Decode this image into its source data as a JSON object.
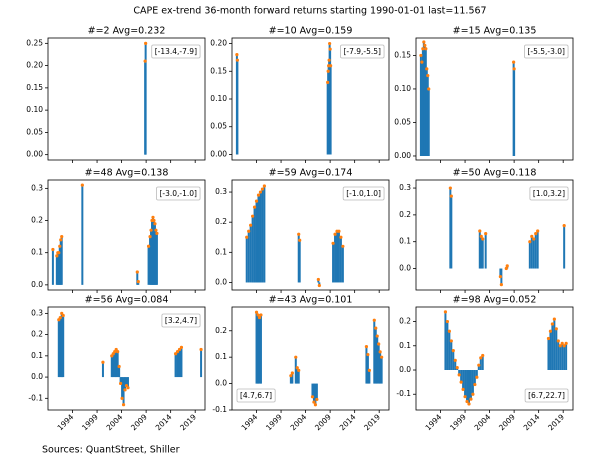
{
  "title": "CAPE ex-trend 36-month forward returns starting 1990-01-01  last=11.567",
  "source": "Sources: QuantStreet, Shiller",
  "chart_data": [
    {
      "type": "stem",
      "title": "#=2 Avg=0.232",
      "annotation": "[-13.4,-7.9]",
      "annotation_corner": "top right",
      "color": "#1f77b4",
      "marker_color": "#ff7f0e",
      "x": [
        2008.8,
        2008.9
      ],
      "values": [
        0.21,
        0.25
      ],
      "xlim": [
        1989,
        2021
      ],
      "xticks": [
        1994,
        1999,
        2004,
        2009,
        2014,
        2019
      ],
      "show_xticklabels": false,
      "ylim": [
        -0.012,
        0.262
      ],
      "yticks": [
        {
          "value": 0,
          "label": "0.00"
        },
        0.05,
        {
          "value": 0.1,
          "label": "0.10"
        },
        0.15,
        {
          "value": 0.2,
          "label": "0.20"
        },
        0.25
      ]
    },
    {
      "type": "stem",
      "title": "#=10 Avg=0.159",
      "annotation": "[-7.9,-5.5]",
      "annotation_corner": "top right",
      "color": "#1f77b4",
      "marker_color": "#ff7f0e",
      "x": [
        1990.0,
        1990.1,
        2008.5,
        2008.6,
        2008.7,
        2008.8,
        2008.9,
        2009.0,
        2009.1
      ],
      "values": [
        0.18,
        0.17,
        0.13,
        0.15,
        0.16,
        0.17,
        0.2,
        0.19,
        0.16
      ],
      "xlim": [
        1989,
        2021
      ],
      "xticks": [
        1994,
        1999,
        2004,
        2009,
        2014,
        2019
      ],
      "show_xticklabels": false,
      "ylim": [
        -0.01,
        0.21
      ],
      "yticks": [
        {
          "value": 0,
          "label": "0.00"
        },
        0.05,
        {
          "value": 0.1,
          "label": "0.10"
        },
        0.15,
        {
          "value": 0.2,
          "label": "0.20"
        }
      ]
    },
    {
      "type": "stem",
      "title": "#=15 Avg=0.135",
      "annotation": "[-5.5,-3.0]",
      "annotation_corner": "top right",
      "color": "#1f77b4",
      "marker_color": "#ff7f0e",
      "x": [
        1990.0,
        1990.2,
        1990.4,
        1990.6,
        1990.8,
        1991.0,
        1991.2,
        1991.4,
        1991.6,
        2008.9,
        2009.0
      ],
      "values": [
        0.15,
        0.14,
        0.16,
        0.17,
        0.165,
        0.16,
        0.13,
        0.12,
        0.1,
        0.14,
        0.13
      ],
      "xlim": [
        1989,
        2021
      ],
      "xticks": [
        1994,
        1999,
        2004,
        2009,
        2014,
        2019
      ],
      "show_xticklabels": false,
      "ylim": [
        -0.006,
        0.176
      ],
      "yticks": [
        {
          "value": 0,
          "label": "0.00"
        },
        0.05,
        {
          "value": 0.1,
          "label": "0.10"
        },
        0.15
      ]
    },
    {
      "type": "stem",
      "title": "#=48 Avg=0.138",
      "annotation": "[-3.0,-1.0]",
      "annotation_corner": "top right",
      "color": "#1f77b4",
      "marker_color": "#ff7f0e",
      "x": [
        1990.0,
        1990.8,
        1991.0,
        1991.2,
        1991.4,
        1991.6,
        1991.8,
        1996.0,
        2007.2,
        2007.4,
        2009.5,
        2009.8,
        2010.0,
        2010.2,
        2010.4,
        2010.6,
        2010.8,
        2011.0,
        2011.2
      ],
      "values": [
        0.11,
        0.09,
        0.1,
        0.1,
        0.12,
        0.14,
        0.15,
        0.31,
        0.04,
        0.01,
        0.12,
        0.15,
        0.17,
        0.2,
        0.21,
        0.2,
        0.19,
        0.17,
        0.16
      ],
      "xlim": [
        1989,
        2021
      ],
      "xticks": [
        1994,
        1999,
        2004,
        2009,
        2014,
        2019
      ],
      "show_xticklabels": false,
      "ylim": [
        -0.016,
        0.326
      ],
      "yticks": [
        {
          "value": 0,
          "label": "0.0"
        },
        0.1,
        0.2,
        0.3
      ]
    },
    {
      "type": "stem",
      "title": "#=59 Avg=0.174",
      "annotation": "[-1.0,1.0]",
      "annotation_corner": "top right",
      "color": "#1f77b4",
      "marker_color": "#ff7f0e",
      "x": [
        1992.0,
        1992.4,
        1992.8,
        1993.2,
        1993.6,
        1994.0,
        1994.4,
        1994.8,
        1995.2,
        1995.6,
        2002.6,
        2002.8,
        2006.6,
        2006.8,
        2009.6,
        2010.0,
        2010.4,
        2010.8,
        2011.2,
        2011.6
      ],
      "values": [
        0.15,
        0.17,
        0.19,
        0.22,
        0.25,
        0.27,
        0.29,
        0.3,
        0.31,
        0.32,
        0.16,
        0.14,
        0.01,
        -0.01,
        0.13,
        0.16,
        0.17,
        0.17,
        0.15,
        0.12
      ],
      "xlim": [
        1989,
        2021
      ],
      "xticks": [
        1994,
        1999,
        2004,
        2009,
        2014,
        2019
      ],
      "show_xticklabels": false,
      "ylim": [
        -0.025,
        0.34
      ],
      "yticks": [
        {
          "value": 0,
          "label": "0.0"
        },
        0.1,
        0.2,
        0.3
      ]
    },
    {
      "type": "stem",
      "title": "#=50 Avg=0.118",
      "annotation": "[1.0,3.2]",
      "annotation_corner": "top right",
      "color": "#1f77b4",
      "marker_color": "#ff7f0e",
      "x": [
        1996.0,
        1996.2,
        2002.0,
        2002.3,
        2002.6,
        2003.2,
        2006.2,
        2006.4,
        2007.4,
        2007.6,
        2012.2,
        2012.6,
        2013.0,
        2013.4,
        2013.8,
        2019.2
      ],
      "values": [
        0.3,
        0.27,
        0.14,
        0.12,
        0.11,
        0.13,
        -0.03,
        -0.06,
        0.0,
        0.01,
        0.1,
        0.12,
        0.11,
        0.13,
        0.14,
        0.16
      ],
      "xlim": [
        1989,
        2021
      ],
      "xticks": [
        1994,
        1999,
        2004,
        2009,
        2014,
        2019
      ],
      "show_xticklabels": false,
      "ylim": [
        -0.08,
        0.33
      ],
      "yticks": [
        {
          "value": 0,
          "label": "0.0"
        },
        0.1,
        0.2,
        0.3
      ]
    },
    {
      "type": "stem",
      "title": "#=56 Avg=0.084",
      "annotation": "[3.2,4.7]",
      "annotation_corner": "top right",
      "color": "#1f77b4",
      "marker_color": "#ff7f0e",
      "x": [
        1991.2,
        1991.5,
        1991.8,
        1992.1,
        2000.2,
        2002.0,
        2002.3,
        2002.6,
        2002.9,
        2003.2,
        2003.5,
        2003.8,
        2004.1,
        2004.4,
        2004.7,
        2005.0,
        2005.3,
        2015.0,
        2015.4,
        2015.8,
        2016.2,
        2020.2
      ],
      "values": [
        0.27,
        0.28,
        0.3,
        0.29,
        0.07,
        0.1,
        0.11,
        0.12,
        0.13,
        0.12,
        0.05,
        -0.03,
        -0.1,
        -0.13,
        -0.06,
        -0.04,
        -0.05,
        0.11,
        0.12,
        0.13,
        0.14,
        0.13
      ],
      "xlim": [
        1989,
        2021
      ],
      "xticks": [
        1994,
        1999,
        2004,
        2009,
        2014,
        2019
      ],
      "show_xticklabels": true,
      "ylim": [
        -0.155,
        0.33
      ],
      "yticks": [
        -0.1,
        {
          "value": 0,
          "label": "0.0"
        },
        0.1,
        0.2,
        0.3
      ]
    },
    {
      "type": "stem",
      "title": "#=43 Avg=0.101",
      "annotation": "[4.7,6.7]",
      "annotation_corner": "bottom left",
      "color": "#1f77b4",
      "marker_color": "#ff7f0e",
      "x": [
        1994.0,
        1994.3,
        1994.6,
        1994.9,
        2001.0,
        2001.3,
        2002.0,
        2002.3,
        2002.6,
        2005.4,
        2005.7,
        2006.0,
        2006.3,
        2016.4,
        2016.7,
        2017.0,
        2018.0,
        2018.3,
        2018.6,
        2018.9,
        2019.2,
        2019.5
      ],
      "values": [
        0.27,
        0.26,
        0.25,
        0.26,
        0.03,
        0.04,
        0.1,
        0.06,
        0.05,
        -0.05,
        -0.07,
        -0.08,
        -0.06,
        0.14,
        0.11,
        0.05,
        0.24,
        0.21,
        0.18,
        0.15,
        0.12,
        0.1
      ],
      "xlim": [
        1989,
        2021
      ],
      "xticks": [
        1994,
        1999,
        2004,
        2009,
        2014,
        2019
      ],
      "show_xticklabels": true,
      "ylim": [
        -0.1,
        0.29
      ],
      "yticks": [
        -0.1,
        {
          "value": 0,
          "label": "0.0"
        },
        0.1,
        0.2
      ]
    },
    {
      "type": "stem",
      "title": "#=98 Avg=0.052",
      "annotation": "[6.7,22.7]",
      "annotation_corner": "bottom right",
      "color": "#1f77b4",
      "marker_color": "#ff7f0e",
      "x": [
        1995.0,
        1995.4,
        1995.8,
        1996.2,
        1996.6,
        1997.0,
        1997.4,
        1997.8,
        1998.2,
        1998.6,
        1999.0,
        1999.4,
        1999.8,
        2000.2,
        2000.6,
        2001.0,
        2001.4,
        2001.8,
        2002.2,
        2002.6,
        2016.0,
        2016.4,
        2016.8,
        2017.2,
        2017.6,
        2018.0,
        2018.4,
        2018.8,
        2019.2,
        2019.6
      ],
      "values": [
        0.24,
        0.2,
        0.16,
        0.12,
        0.08,
        0.04,
        0.01,
        -0.02,
        -0.05,
        -0.08,
        -0.11,
        -0.13,
        -0.14,
        -0.12,
        -0.1,
        -0.06,
        -0.03,
        0.02,
        0.05,
        0.06,
        0.13,
        0.16,
        0.19,
        0.21,
        0.17,
        0.12,
        0.1,
        0.11,
        0.1,
        0.11
      ],
      "xlim": [
        1989,
        2021
      ],
      "xticks": [
        1994,
        1999,
        2004,
        2009,
        2014,
        2019
      ],
      "show_xticklabels": true,
      "ylim": [
        -0.165,
        0.26
      ],
      "yticks": [
        -0.1,
        {
          "value": 0,
          "label": "0.0"
        },
        0.1,
        0.2
      ]
    }
  ]
}
